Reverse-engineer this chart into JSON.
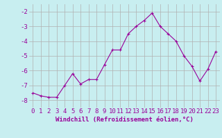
{
  "x": [
    0,
    1,
    2,
    3,
    4,
    5,
    6,
    7,
    8,
    9,
    10,
    11,
    12,
    13,
    14,
    15,
    16,
    17,
    18,
    19,
    20,
    21,
    22,
    23
  ],
  "y": [
    -7.5,
    -7.7,
    -7.8,
    -7.8,
    -7.0,
    -6.2,
    -6.9,
    -6.6,
    -6.6,
    -5.6,
    -4.6,
    -4.6,
    -3.5,
    -3.0,
    -2.6,
    -2.1,
    -3.0,
    -3.5,
    -4.0,
    -5.0,
    -5.7,
    -6.7,
    -5.9,
    -4.7
  ],
  "line_color": "#990099",
  "marker": "+",
  "bg_color": "#c8eef0",
  "grid_color": "#b0b0b0",
  "xlabel": "Windchill (Refroidissement éolien,°C)",
  "xlabel_color": "#990099",
  "tick_color": "#990099",
  "ylim": [
    -8.5,
    -1.5
  ],
  "yticks": [
    -8,
    -7,
    -6,
    -5,
    -4,
    -3,
    -2
  ],
  "xlim": [
    -0.5,
    23.5
  ],
  "xticks": [
    0,
    1,
    2,
    3,
    4,
    5,
    6,
    7,
    8,
    9,
    10,
    11,
    12,
    13,
    14,
    15,
    16,
    17,
    18,
    19,
    20,
    21,
    22,
    23
  ],
  "tick_fontsize": 6.5,
  "label_fontsize": 6.5
}
